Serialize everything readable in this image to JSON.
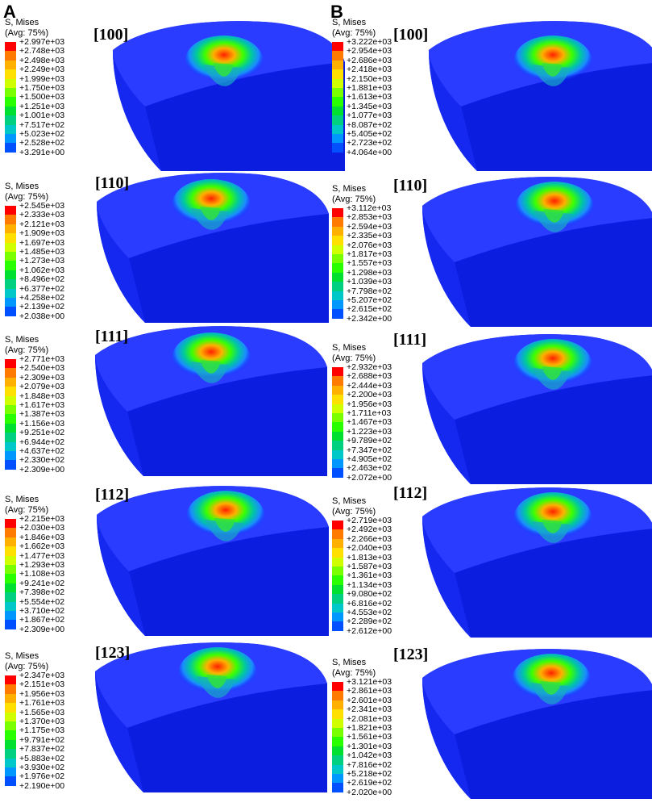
{
  "column_labels": [
    "A",
    "B"
  ],
  "legend_title_line1": "S, Mises",
  "legend_title_line2": "(Avg: 75%)",
  "colors": [
    "#ff0000",
    "#ff7a00",
    "#ffb000",
    "#ffe000",
    "#d0ff00",
    "#7aff00",
    "#2aff00",
    "#00e030",
    "#00d080",
    "#00c8c8",
    "#0098ff",
    "#0050ff",
    "#0000ff"
  ],
  "panels": [
    {
      "id": "A-100",
      "direction": "[100]",
      "values": [
        "+2.997e+03",
        "+2.748e+03",
        "+2.498e+03",
        "+2.249e+03",
        "+1.999e+03",
        "+1.750e+03",
        "+1.500e+03",
        "+1.251e+03",
        "+1.001e+03",
        "+7.517e+02",
        "+5.023e+02",
        "+2.528e+02",
        "+3.291e+00"
      ]
    },
    {
      "id": "A-110",
      "direction": "[110]",
      "values": [
        "+2.545e+03",
        "+2.333e+03",
        "+2.121e+03",
        "+1.909e+03",
        "+1.697e+03",
        "+1.485e+03",
        "+1.273e+03",
        "+1.062e+03",
        "+8.496e+02",
        "+6.377e+02",
        "+4.258e+02",
        "+2.139e+02",
        "+2.038e+00"
      ]
    },
    {
      "id": "A-111",
      "direction": "[111]",
      "values": [
        "+2.771e+03",
        "+2.540e+03",
        "+2.309e+03",
        "+2.079e+03",
        "+1.848e+03",
        "+1.617e+03",
        "+1.387e+03",
        "+1.156e+03",
        "+9.251e+02",
        "+6.944e+02",
        "+4.637e+02",
        "+2.330e+02",
        "+2.309e+00"
      ]
    },
    {
      "id": "A-112",
      "direction": "[112]",
      "values": [
        "+2.215e+03",
        "+2.030e+03",
        "+1.846e+03",
        "+1.662e+03",
        "+1.477e+03",
        "+1.293e+03",
        "+1.108e+03",
        "+9.241e+02",
        "+7.398e+02",
        "+5.554e+02",
        "+3.710e+02",
        "+1.867e+02",
        "+2.309e+00"
      ]
    },
    {
      "id": "A-123",
      "direction": "[123]",
      "values": [
        "+2.347e+03",
        "+2.151e+03",
        "+1.956e+03",
        "+1.761e+03",
        "+1.565e+03",
        "+1.370e+03",
        "+1.175e+03",
        "+9.791e+02",
        "+7.837e+02",
        "+5.883e+02",
        "+3.930e+02",
        "+1.976e+02",
        "+2.190e+00"
      ]
    },
    {
      "id": "B-100",
      "direction": "[100]",
      "values": [
        "+3.222e+03",
        "+2.954e+03",
        "+2.686e+03",
        "+2.418e+03",
        "+2.150e+03",
        "+1.881e+03",
        "+1.613e+03",
        "+1.345e+03",
        "+1.077e+03",
        "+8.087e+02",
        "+5.405e+02",
        "+2.723e+02",
        "+4.064e+00"
      ]
    },
    {
      "id": "B-110",
      "direction": "[110]",
      "values": [
        "+3.112e+03",
        "+2.853e+03",
        "+2.594e+03",
        "+2.335e+03",
        "+2.076e+03",
        "+1.817e+03",
        "+1.557e+03",
        "+1.298e+03",
        "+1.039e+03",
        "+7.798e+02",
        "+5.207e+02",
        "+2.615e+02",
        "+2.342e+00"
      ]
    },
    {
      "id": "B-111",
      "direction": "[111]",
      "values": [
        "+2.932e+03",
        "+2.688e+03",
        "+2.444e+03",
        "+2.200e+03",
        "+1.956e+03",
        "+1.711e+03",
        "+1.467e+03",
        "+1.223e+03",
        "+9.789e+02",
        "+7.347e+02",
        "+4.905e+02",
        "+2.463e+02",
        "+2.072e+00"
      ]
    },
    {
      "id": "B-112",
      "direction": "[112]",
      "values": [
        "+2.719e+03",
        "+2.492e+03",
        "+2.266e+03",
        "+2.040e+03",
        "+1.813e+03",
        "+1.587e+03",
        "+1.361e+03",
        "+1.134e+03",
        "+9.080e+02",
        "+6.816e+02",
        "+4.553e+02",
        "+2.289e+02",
        "+2.612e+00"
      ]
    },
    {
      "id": "B-123",
      "direction": "[123]",
      "values": [
        "+3.121e+03",
        "+2.861e+03",
        "+2.601e+03",
        "+2.341e+03",
        "+2.081e+03",
        "+1.821e+03",
        "+1.561e+03",
        "+1.301e+03",
        "+1.042e+03",
        "+7.816e+02",
        "+5.218e+02",
        "+2.619e+02",
        "+2.020e+00"
      ]
    }
  ]
}
